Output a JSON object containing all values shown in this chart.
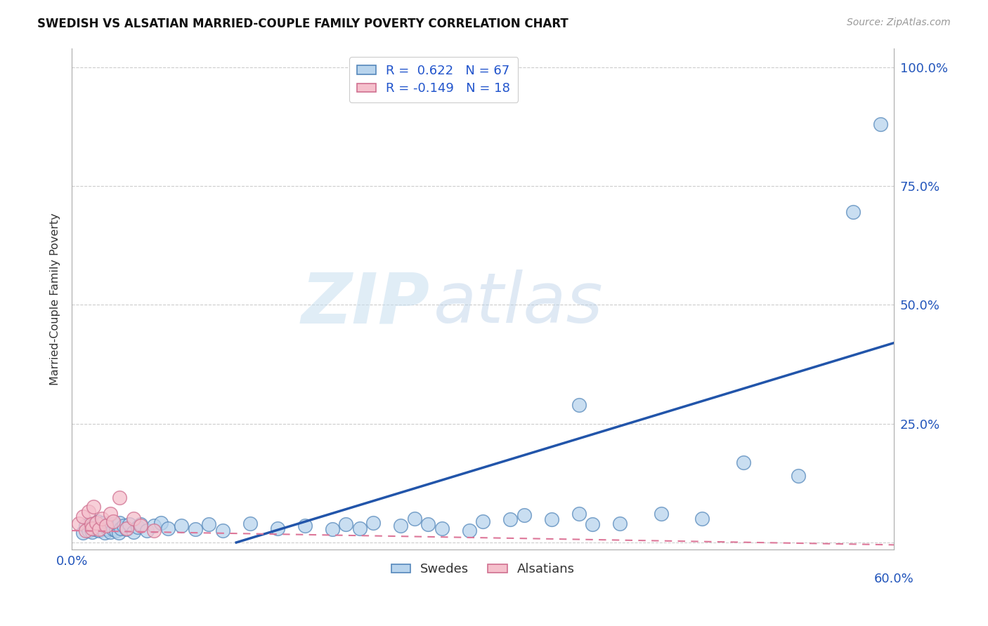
{
  "title": "SWEDISH VS ALSATIAN MARRIED-COUPLE FAMILY POVERTY CORRELATION CHART",
  "source": "Source: ZipAtlas.com",
  "ylabel": "Married-Couple Family Poverty",
  "xlim": [
    0.0,
    0.6
  ],
  "ylim": [
    -0.015,
    1.04
  ],
  "ytick_positions": [
    0.0,
    0.25,
    0.5,
    0.75,
    1.0
  ],
  "ytick_labels": [
    "",
    "25.0%",
    "50.0%",
    "75.0%",
    "100.0%"
  ],
  "xtick_positions": [
    0.0,
    0.1,
    0.2,
    0.3,
    0.4,
    0.5,
    0.6
  ],
  "xtick_labels": [
    "0.0%",
    "",
    "",
    "",
    "",
    "",
    "60.0%"
  ],
  "swedish_color": "#b8d4ed",
  "swedish_edge": "#5588bb",
  "alsatian_color": "#f5c0cc",
  "alsatian_edge": "#d07090",
  "trend_blue_color": "#2255aa",
  "trend_pink_color": "#dd7799",
  "swedish_R": "0.622",
  "swedish_N": "67",
  "alsatian_R": "-0.149",
  "alsatian_N": "18",
  "watermark_ZIP": "ZIP",
  "watermark_atlas": "atlas",
  "legend_label_1": "R =  0.622   N = 67",
  "legend_label_2": "R = -0.149   N = 18",
  "swedish_trend_x": [
    0.12,
    0.6
  ],
  "swedish_trend_y": [
    0.0,
    0.42
  ],
  "alsatian_trend_x": [
    0.0,
    0.6
  ],
  "alsatian_trend_y": [
    0.025,
    -0.005
  ],
  "swedish_x": [
    0.008,
    0.01,
    0.012,
    0.013,
    0.014,
    0.015,
    0.016,
    0.017,
    0.018,
    0.019,
    0.02,
    0.021,
    0.022,
    0.023,
    0.024,
    0.025,
    0.026,
    0.027,
    0.028,
    0.029,
    0.03,
    0.031,
    0.032,
    0.033,
    0.034,
    0.035,
    0.036,
    0.038,
    0.04,
    0.042,
    0.045,
    0.048,
    0.05,
    0.055,
    0.06,
    0.065,
    0.07,
    0.08,
    0.09,
    0.1,
    0.11,
    0.13,
    0.15,
    0.17,
    0.19,
    0.2,
    0.21,
    0.22,
    0.24,
    0.25,
    0.26,
    0.27,
    0.29,
    0.3,
    0.32,
    0.33,
    0.35,
    0.37,
    0.38,
    0.4,
    0.43,
    0.46,
    0.37,
    0.49,
    0.53,
    0.57,
    0.59
  ],
  "swedish_y": [
    0.02,
    0.035,
    0.025,
    0.04,
    0.03,
    0.022,
    0.038,
    0.028,
    0.033,
    0.045,
    0.025,
    0.038,
    0.03,
    0.042,
    0.02,
    0.035,
    0.028,
    0.04,
    0.022,
    0.035,
    0.028,
    0.04,
    0.025,
    0.035,
    0.02,
    0.042,
    0.03,
    0.035,
    0.028,
    0.038,
    0.022,
    0.032,
    0.038,
    0.025,
    0.035,
    0.042,
    0.03,
    0.035,
    0.028,
    0.038,
    0.025,
    0.04,
    0.03,
    0.035,
    0.028,
    0.038,
    0.03,
    0.042,
    0.035,
    0.05,
    0.038,
    0.03,
    0.025,
    0.045,
    0.048,
    0.058,
    0.048,
    0.06,
    0.038,
    0.04,
    0.06,
    0.05,
    0.29,
    0.168,
    0.14,
    0.695,
    0.88
  ],
  "alsatian_x": [
    0.005,
    0.008,
    0.01,
    0.012,
    0.014,
    0.015,
    0.016,
    0.018,
    0.02,
    0.022,
    0.025,
    0.028,
    0.03,
    0.035,
    0.04,
    0.045,
    0.05,
    0.06
  ],
  "alsatian_y": [
    0.04,
    0.055,
    0.025,
    0.065,
    0.038,
    0.03,
    0.075,
    0.042,
    0.028,
    0.05,
    0.035,
    0.06,
    0.045,
    0.095,
    0.03,
    0.05,
    0.035,
    0.025
  ]
}
